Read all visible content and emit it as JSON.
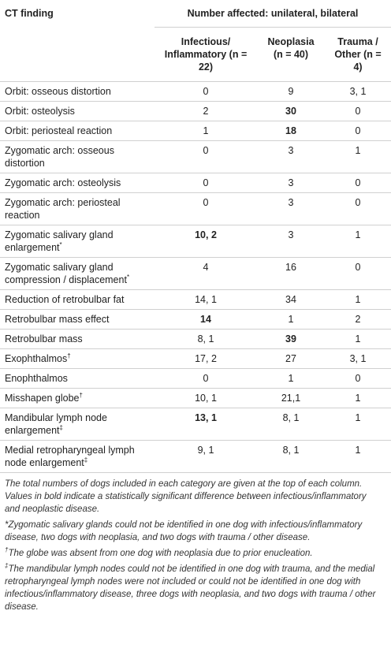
{
  "table": {
    "header": {
      "first": "CT finding",
      "group": "Number affected: unilateral, bilateral",
      "columns": [
        "Infectious/ Inflammatory (n = 22)",
        "Neoplasia (n = 40)",
        "Trauma / Other (n = 4)"
      ]
    },
    "rows": [
      {
        "label": "Orbit: osseous distortion",
        "values": [
          "0",
          "9",
          "3, 1"
        ],
        "bold": [
          false,
          false,
          false
        ]
      },
      {
        "label": "Orbit: osteolysis",
        "values": [
          "2",
          "30",
          "0"
        ],
        "bold": [
          false,
          true,
          false
        ]
      },
      {
        "label": "Orbit: periosteal reaction",
        "values": [
          "1",
          "18",
          "0"
        ],
        "bold": [
          false,
          true,
          false
        ]
      },
      {
        "label": "Zygomatic arch: osseous distortion",
        "values": [
          "0",
          "3",
          "1"
        ],
        "bold": [
          false,
          false,
          false
        ]
      },
      {
        "label": "Zygomatic arch: osteolysis",
        "values": [
          "0",
          "3",
          "0"
        ],
        "bold": [
          false,
          false,
          false
        ]
      },
      {
        "label": "Zygomatic arch: periosteal reaction",
        "values": [
          "0",
          "3",
          "0"
        ],
        "bold": [
          false,
          false,
          false
        ]
      },
      {
        "label": "Zygomatic salivary gland enlargement",
        "mark": "*",
        "values": [
          "10, 2",
          "3",
          "1"
        ],
        "bold": [
          true,
          false,
          false
        ]
      },
      {
        "label": "Zygomatic salivary gland compression / displacement",
        "mark": "*",
        "values": [
          "4",
          "16",
          "0"
        ],
        "bold": [
          false,
          false,
          false
        ]
      },
      {
        "label": "Reduction of retrobulbar fat",
        "values": [
          "14, 1",
          "34",
          "1"
        ],
        "bold": [
          false,
          false,
          false
        ]
      },
      {
        "label": "Retrobulbar mass effect",
        "values": [
          "14",
          "1",
          "2"
        ],
        "bold": [
          true,
          false,
          false
        ]
      },
      {
        "label": "Retrobulbar mass",
        "values": [
          "8, 1",
          "39",
          "1"
        ],
        "bold": [
          false,
          true,
          false
        ]
      },
      {
        "label": "Exophthalmos",
        "mark": "†",
        "values": [
          "17, 2",
          "27",
          "3, 1"
        ],
        "bold": [
          false,
          false,
          false
        ]
      },
      {
        "label": "Enophthalmos",
        "values": [
          "0",
          "1",
          "0"
        ],
        "bold": [
          false,
          false,
          false
        ]
      },
      {
        "label": "Misshapen globe",
        "mark": "†",
        "values": [
          "10, 1",
          "21,1",
          "1"
        ],
        "bold": [
          false,
          false,
          false
        ]
      },
      {
        "label": "Mandibular lymph node enlargement",
        "mark": "‡",
        "values": [
          "13, 1",
          "8, 1",
          "1"
        ],
        "bold": [
          true,
          false,
          false
        ]
      },
      {
        "label": "Medial retropharyngeal lymph node enlargement",
        "mark": "‡",
        "values": [
          "9, 1",
          "8, 1",
          "1"
        ],
        "bold": [
          false,
          false,
          false
        ]
      }
    ],
    "footnotes": [
      {
        "text": "The total numbers of dogs included in each category are given at the top of each column. Values in bold indicate a statistically significant difference between infectious/inflammatory and neoplastic disease."
      },
      {
        "mark": "*",
        "text": "Zygomatic salivary glands could not be identified in one dog with infectious/inflammatory disease, two dogs with neoplasia, and two dogs with trauma / other disease."
      },
      {
        "mark": "†",
        "text": "The globe was absent from one dog with neoplasia due to prior enucleation."
      },
      {
        "mark": "‡",
        "text": "The mandibular lymph nodes could not be identified in one dog with trauma, and the medial retropharyngeal lymph nodes were not included or could not be identified in one dog with infectious/inflammatory disease, three dogs with neoplasia, and two dogs with trauma / other disease."
      }
    ]
  }
}
